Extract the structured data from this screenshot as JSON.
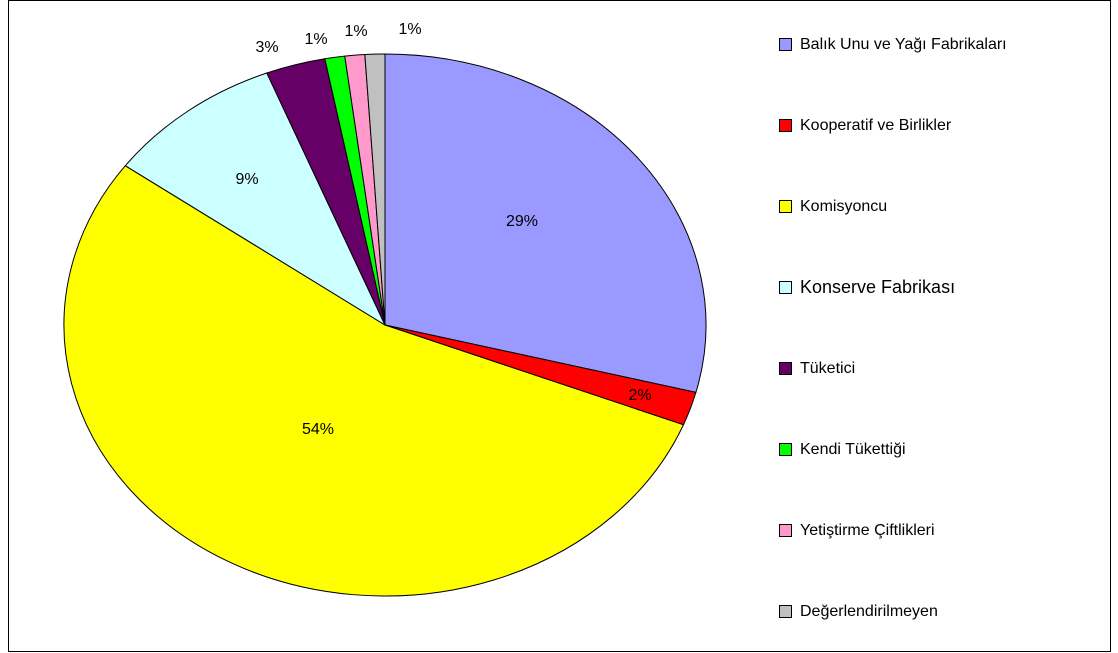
{
  "chart_data": {
    "type": "pie",
    "categories": [
      "Balık Unu ve Yağı Fabrikaları",
      "Kooperatif ve Birlikler",
      "Komisyoncu",
      "Konserve Fabrikası",
      "Tüketici",
      "Kendi Tükettiği",
      "Yetiştirme Çiftlikleri",
      "Değerlendirilmeyen"
    ],
    "values": [
      29,
      2,
      54,
      9,
      3,
      1,
      1,
      1
    ],
    "value_labels": [
      "29%",
      "2%",
      "54%",
      "9%",
      "3%",
      "1%",
      "1%",
      "1%"
    ],
    "colors": [
      "#9999ff",
      "#ff0000",
      "#ffff00",
      "#ccffff",
      "#660066",
      "#00ff00",
      "#ff99cc",
      "#c0c0c0"
    ],
    "legend": "right"
  }
}
